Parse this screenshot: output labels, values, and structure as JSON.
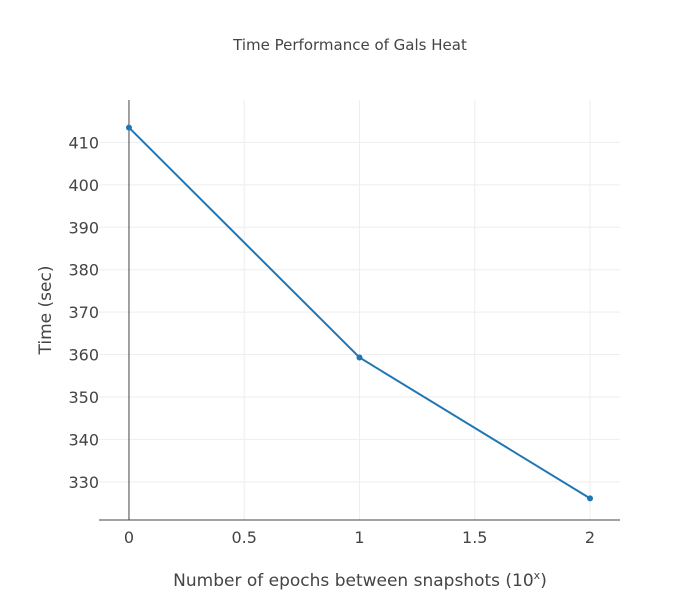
{
  "chart_data": {
    "type": "line",
    "title": "Time Performance of Gals Heat",
    "xlabel": "Number of epochs between snapshots (10",
    "xlabel_sup": "x",
    "xlabel_suffix": ")",
    "ylabel": "Time (sec)",
    "xlim": [
      -0.13,
      2.13
    ],
    "ylim": [
      321,
      420
    ],
    "xticks": [
      0,
      0.5,
      1,
      1.5,
      2
    ],
    "xtick_labels": [
      "0",
      "0.5",
      "1",
      "1.5",
      "2"
    ],
    "yticks": [
      330,
      340,
      350,
      360,
      370,
      380,
      390,
      400,
      410
    ],
    "ytick_labels": [
      "330",
      "340",
      "350",
      "360",
      "370",
      "380",
      "390",
      "400",
      "410"
    ],
    "grid": true,
    "series": [
      {
        "x": [
          0,
          1,
          2
        ],
        "y": [
          413.5,
          359.3,
          326.1
        ],
        "color": "#1f77b4"
      }
    ]
  }
}
